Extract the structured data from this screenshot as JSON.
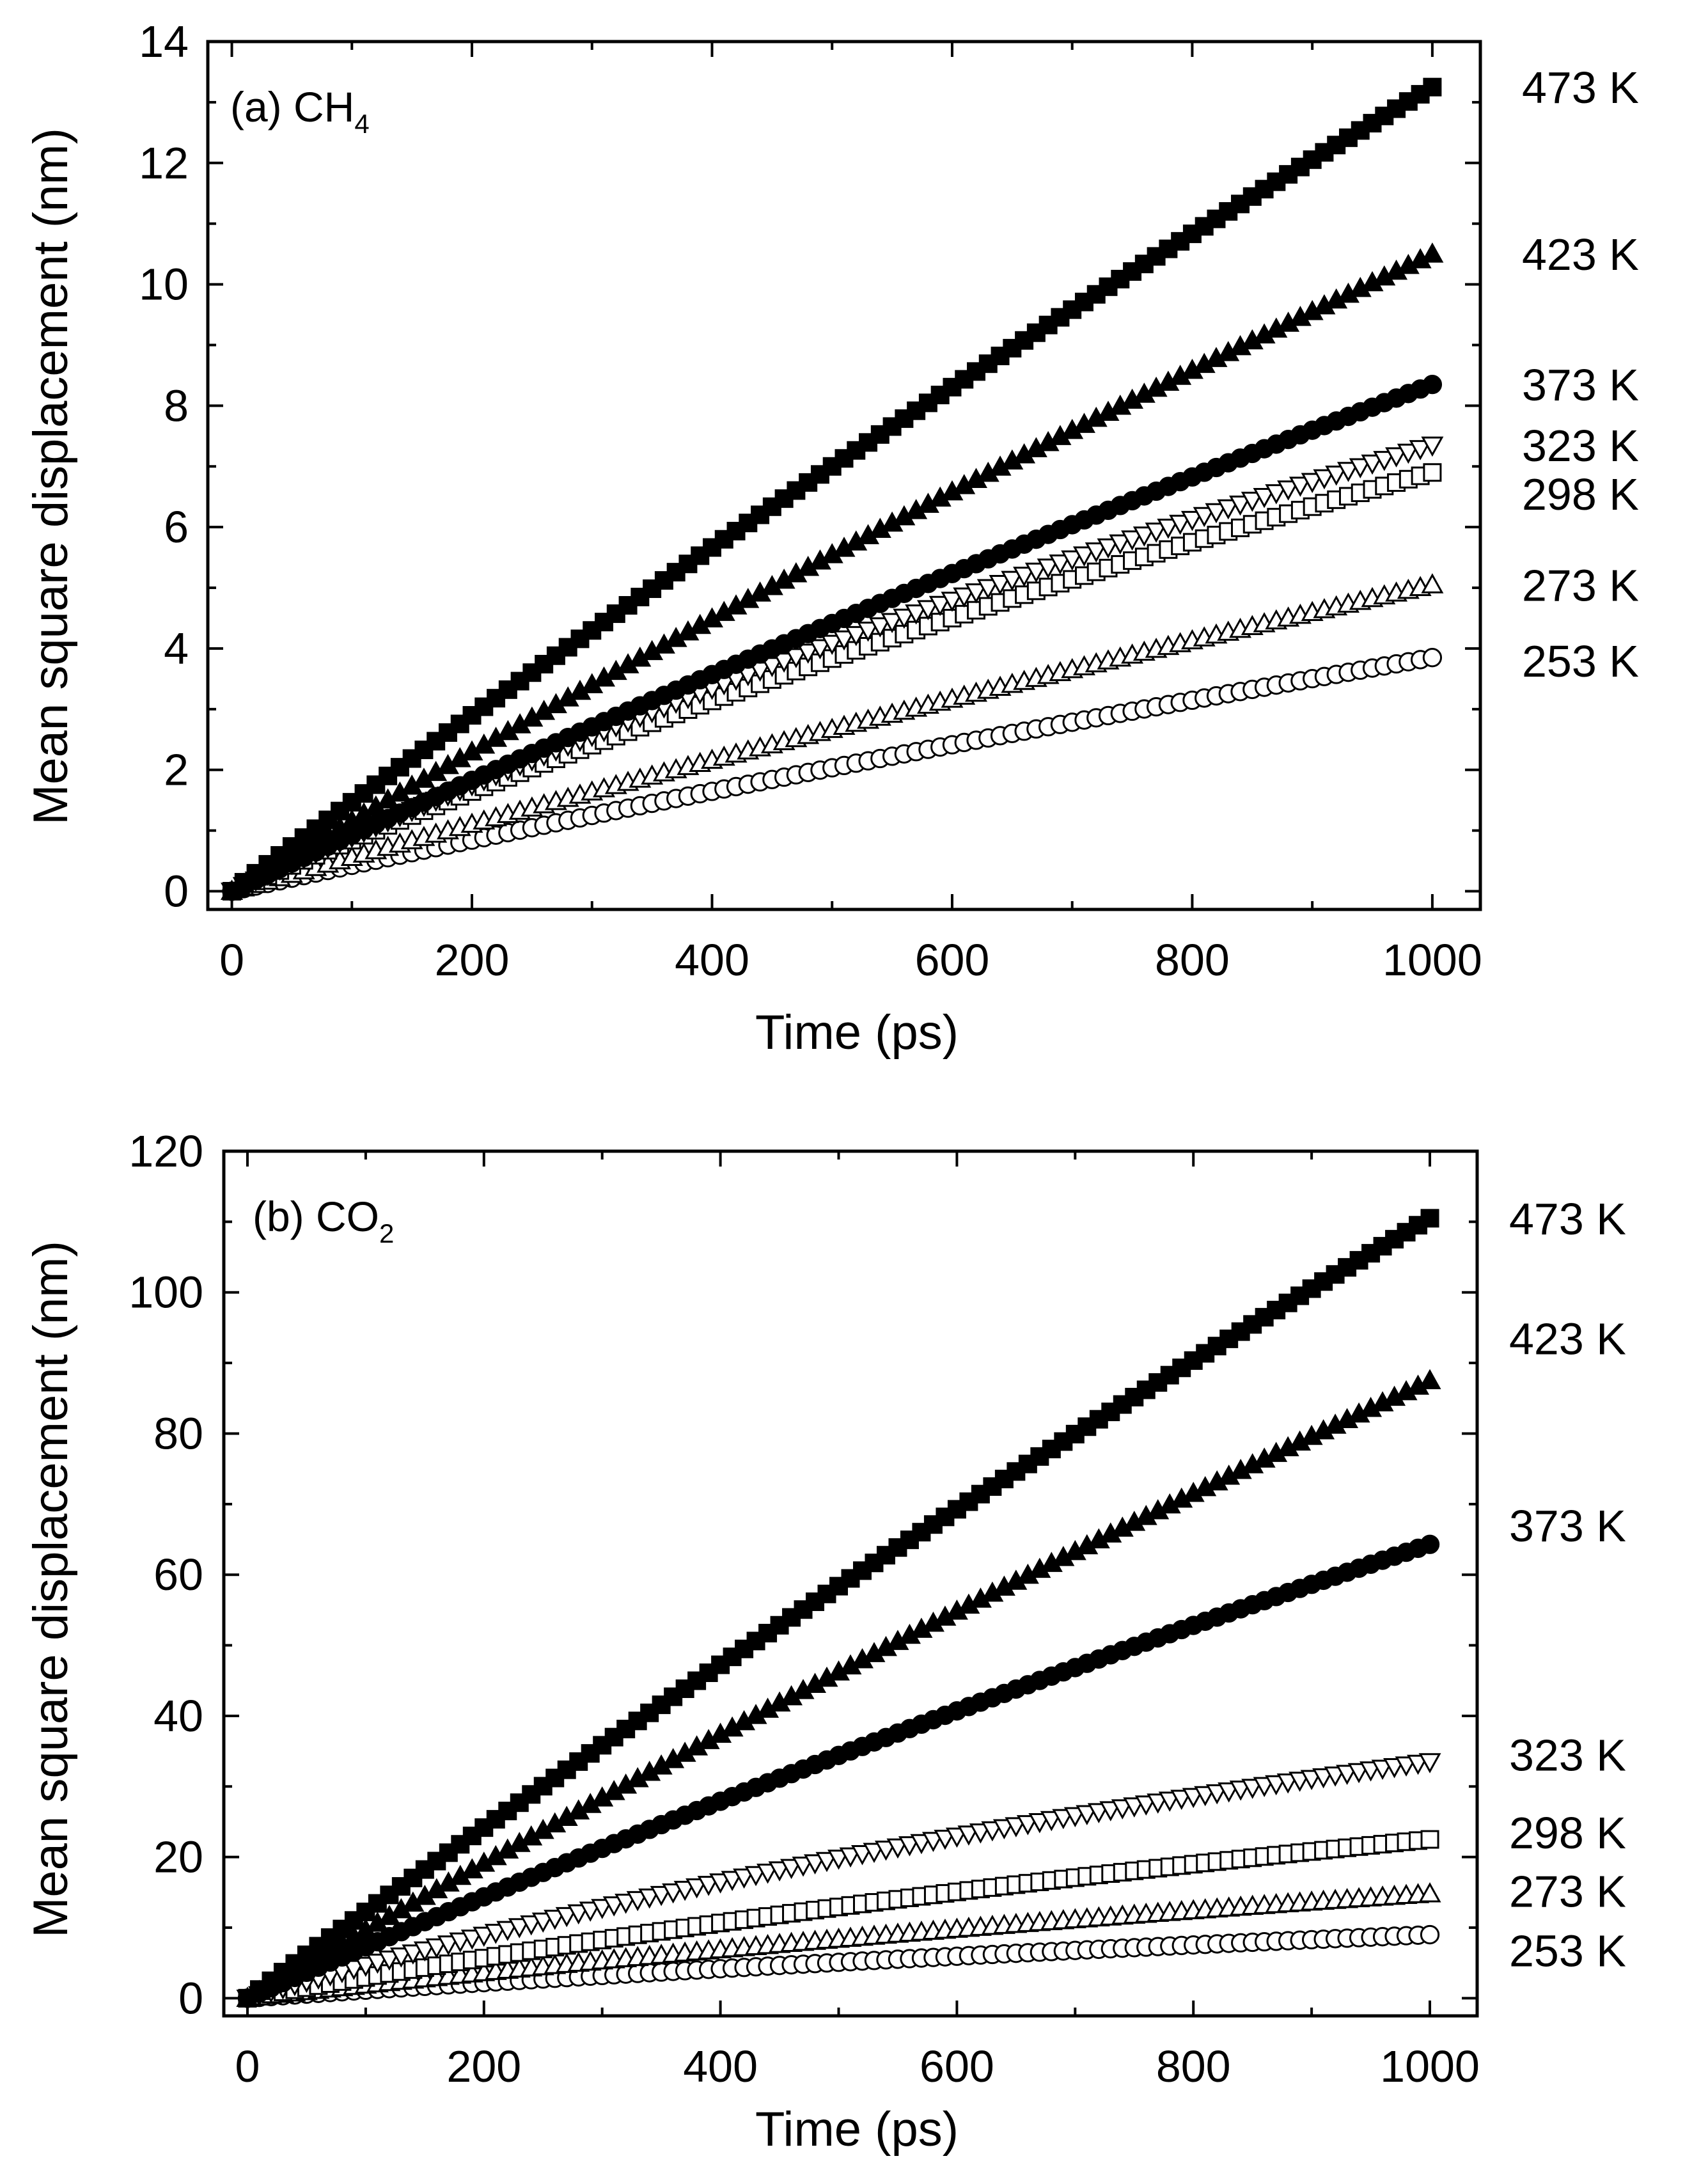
{
  "chart_data": [
    {
      "type": "scatter",
      "panel_label": "(a) CH",
      "panel_subscript": "4",
      "xlabel": "Time (ps)",
      "ylabel": "Mean square displacement (nm)",
      "xlim": [
        -20,
        1040
      ],
      "ylim": [
        -0.3,
        14
      ],
      "xticks": [
        0,
        200,
        400,
        600,
        800,
        1000
      ],
      "yticks": [
        0,
        2,
        4,
        6,
        8,
        10,
        12,
        14
      ],
      "x": [
        0,
        1000
      ],
      "series": [
        {
          "name": "473 K",
          "marker": "square",
          "filled": true,
          "values": [
            0,
            13.25
          ]
        },
        {
          "name": "423 K",
          "marker": "triangle-up",
          "filled": true,
          "values": [
            0,
            10.5
          ]
        },
        {
          "name": "373 K",
          "marker": "circle",
          "filled": true,
          "values": [
            0,
            8.35
          ]
        },
        {
          "name": "323 K",
          "marker": "triangle-down",
          "filled": false,
          "values": [
            0,
            7.35
          ]
        },
        {
          "name": "298 K",
          "marker": "square",
          "filled": false,
          "values": [
            0,
            6.9
          ]
        },
        {
          "name": "273 K",
          "marker": "triangle-up",
          "filled": false,
          "values": [
            0,
            5.05
          ]
        },
        {
          "name": "253 K",
          "marker": "circle",
          "filled": false,
          "values": [
            0,
            3.85
          ]
        }
      ],
      "curvature": [
        0.12,
        0.12,
        0.12,
        0.25,
        0.25,
        0.12,
        0.12
      ],
      "label_y": [
        13.25,
        10.5,
        8.35,
        7.35,
        6.55,
        5.05,
        3.8
      ]
    },
    {
      "type": "scatter",
      "panel_label": "(b) CO",
      "panel_subscript": "2",
      "xlabel": "Time (ps)",
      "ylabel": "Mean square displacement (nm)",
      "xlim": [
        -20,
        1040
      ],
      "ylim": [
        -2.5,
        120
      ],
      "xticks": [
        0,
        200,
        400,
        600,
        800,
        1000
      ],
      "yticks": [
        0,
        20,
        40,
        60,
        80,
        100,
        120
      ],
      "x": [
        0,
        1000
      ],
      "series": [
        {
          "name": "473 K",
          "marker": "square",
          "filled": true,
          "values": [
            0,
            110.5
          ]
        },
        {
          "name": "423 K",
          "marker": "triangle-up",
          "filled": true,
          "values": [
            0,
            87.5
          ]
        },
        {
          "name": "373 K",
          "marker": "circle",
          "filled": true,
          "values": [
            0,
            64.3
          ]
        },
        {
          "name": "323 K",
          "marker": "triangle-down",
          "filled": false,
          "values": [
            0,
            33.5
          ]
        },
        {
          "name": "298 K",
          "marker": "square",
          "filled": false,
          "values": [
            0,
            22.5
          ]
        },
        {
          "name": "273 K",
          "marker": "triangle-up",
          "filled": false,
          "values": [
            0,
            14.8
          ]
        },
        {
          "name": "253 K",
          "marker": "circle",
          "filled": false,
          "values": [
            0,
            9.0
          ]
        }
      ],
      "curvature": [
        0.12,
        0.12,
        0.15,
        0.45,
        0.35,
        0.3,
        0.3
      ],
      "label_y": [
        110.5,
        93.5,
        67,
        34.5,
        23.5,
        15.2,
        6.8
      ]
    }
  ]
}
